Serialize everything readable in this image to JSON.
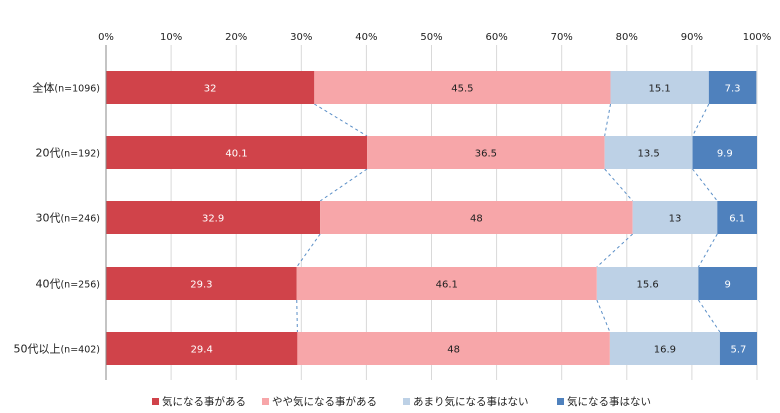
{
  "chart_data": {
    "type": "bar",
    "orientation": "horizontal",
    "stacked": "percent",
    "title": "",
    "xlabel": "",
    "ylabel": "",
    "xlim": [
      0,
      100
    ],
    "x_ticks": [
      "0%",
      "10%",
      "20%",
      "30%",
      "40%",
      "50%",
      "60%",
      "70%",
      "80%",
      "90%",
      "100%"
    ],
    "categories": [
      {
        "label": "全体",
        "n": "(n=1096)"
      },
      {
        "label": "20代",
        "n": "(n=192)"
      },
      {
        "label": "30代",
        "n": "(n=246)"
      },
      {
        "label": "40代",
        "n": "(n=256)"
      },
      {
        "label": "50代以上",
        "n": "(n=402)"
      }
    ],
    "series": [
      {
        "name": "気になる事がある",
        "color": "#d0434a",
        "label_color": "#ffffff",
        "values": [
          32,
          40.1,
          32.9,
          29.3,
          29.4
        ]
      },
      {
        "name": "やや気になる事がある",
        "color": "#f7a6a9",
        "label_color": "#222222",
        "values": [
          45.5,
          36.5,
          48,
          46.1,
          48
        ]
      },
      {
        "name": "あまり気になる事はない",
        "color": "#bdd1e6",
        "label_color": "#222222",
        "values": [
          15.1,
          13.5,
          13,
          15.6,
          16.9
        ]
      },
      {
        "name": "気になる事はない",
        "color": "#4f81bd",
        "label_color": "#ffffff",
        "values": [
          7.3,
          9.9,
          6.1,
          9,
          5.7
        ]
      }
    ],
    "grid": true,
    "series_connector_lines": true,
    "legend_position": "bottom"
  }
}
